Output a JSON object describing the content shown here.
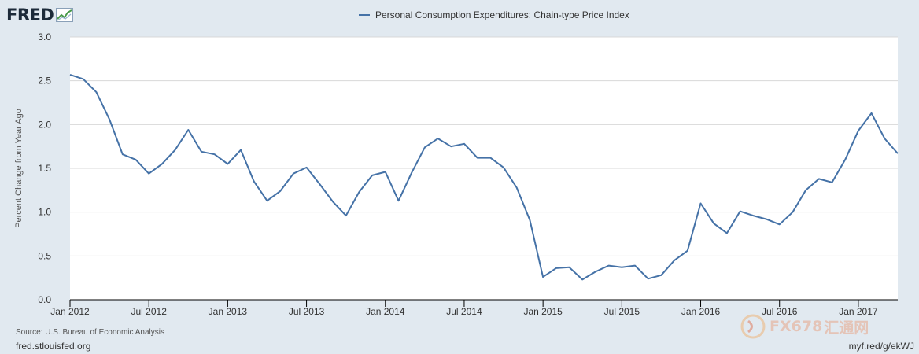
{
  "header": {
    "logo_text": "FRED",
    "legend_label": "Personal Consumption Expenditures: Chain-type Price Index",
    "series_color": "#4572a7"
  },
  "chart_data": {
    "type": "line",
    "ylabel": "Percent Change from Year Ago",
    "ylim": [
      0,
      3
    ],
    "y_ticks": [
      "0.0",
      "0.5",
      "1.0",
      "1.5",
      "2.0",
      "2.5",
      "3.0"
    ],
    "x_ticks": [
      "Jan 2012",
      "Jul 2012",
      "Jan 2013",
      "Jul 2013",
      "Jan 2014",
      "Jul 2014",
      "Jan 2015",
      "Jul 2015",
      "Jan 2016",
      "Jul 2016",
      "Jan 2017"
    ],
    "x_start": "2012-01",
    "x_end": "2017-04",
    "grid": true,
    "series": [
      {
        "name": "Personal Consumption Expenditures: Chain-type Price Index",
        "color": "#4572a7",
        "x": [
          "2012-01",
          "2012-02",
          "2012-03",
          "2012-04",
          "2012-05",
          "2012-06",
          "2012-07",
          "2012-08",
          "2012-09",
          "2012-10",
          "2012-11",
          "2012-12",
          "2013-01",
          "2013-02",
          "2013-03",
          "2013-04",
          "2013-05",
          "2013-06",
          "2013-07",
          "2013-08",
          "2013-09",
          "2013-10",
          "2013-11",
          "2013-12",
          "2014-01",
          "2014-02",
          "2014-03",
          "2014-04",
          "2014-05",
          "2014-06",
          "2014-07",
          "2014-08",
          "2014-09",
          "2014-10",
          "2014-11",
          "2014-12",
          "2015-01",
          "2015-02",
          "2015-03",
          "2015-04",
          "2015-05",
          "2015-06",
          "2015-07",
          "2015-08",
          "2015-09",
          "2015-10",
          "2015-11",
          "2015-12",
          "2016-01",
          "2016-02",
          "2016-03",
          "2016-04",
          "2016-05",
          "2016-06",
          "2016-07",
          "2016-08",
          "2016-09",
          "2016-10",
          "2016-11",
          "2016-12",
          "2017-01",
          "2017-02",
          "2017-03",
          "2017-04"
        ],
        "values": [
          2.57,
          2.52,
          2.37,
          2.06,
          1.66,
          1.6,
          1.44,
          1.55,
          1.71,
          1.94,
          1.69,
          1.66,
          1.55,
          1.71,
          1.35,
          1.13,
          1.24,
          1.44,
          1.51,
          1.32,
          1.12,
          0.96,
          1.23,
          1.42,
          1.46,
          1.13,
          1.45,
          1.74,
          1.84,
          1.75,
          1.78,
          1.62,
          1.62,
          1.51,
          1.28,
          0.91,
          0.26,
          0.36,
          0.37,
          0.23,
          0.32,
          0.39,
          0.37,
          0.39,
          0.24,
          0.28,
          0.45,
          0.56,
          1.1,
          0.87,
          0.76,
          1.01,
          0.96,
          0.92,
          0.86,
          1.0,
          1.25,
          1.38,
          1.34,
          1.6,
          1.93,
          2.13,
          1.84,
          1.67
        ]
      }
    ]
  },
  "footer": {
    "source": "Source: U.S. Bureau of Economic Analysis",
    "site": "fred.stlouisfed.org",
    "short_url": "myf.red/g/ekWJ"
  },
  "watermark": {
    "text": "FX678",
    "text_cn": "汇通网"
  }
}
